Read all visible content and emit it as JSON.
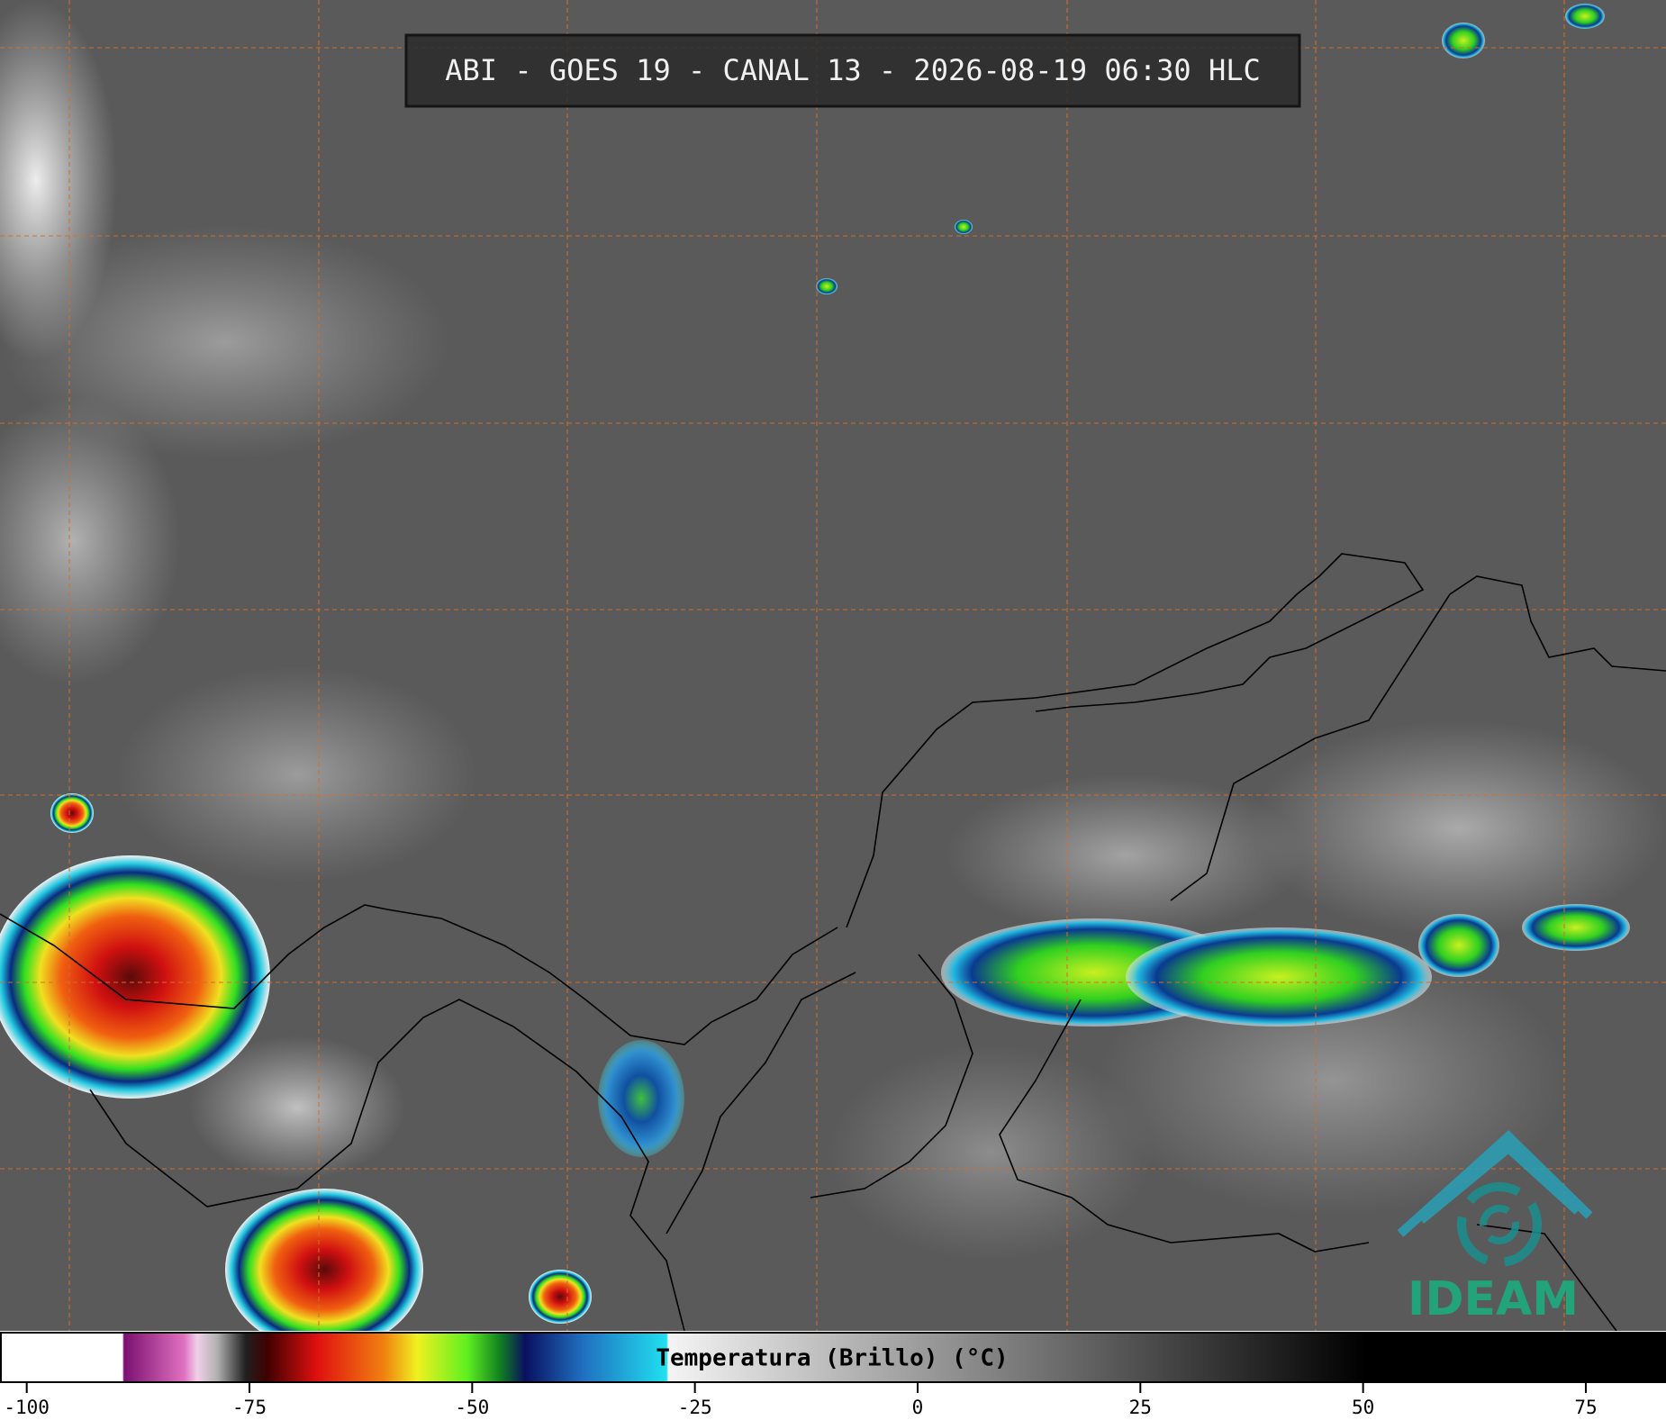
{
  "header": {
    "title": "ABI - GOES 19 - CANAL 13 - 2026-08-19 06:30 HLC"
  },
  "colorbar": {
    "label": "Temperatura (Brillo) (°C)",
    "range": [
      -103,
      84
    ],
    "ticks": [
      -100,
      -75,
      -50,
      -25,
      0,
      25,
      50,
      75
    ]
  },
  "logo": {
    "text": "IDEAM"
  }
}
